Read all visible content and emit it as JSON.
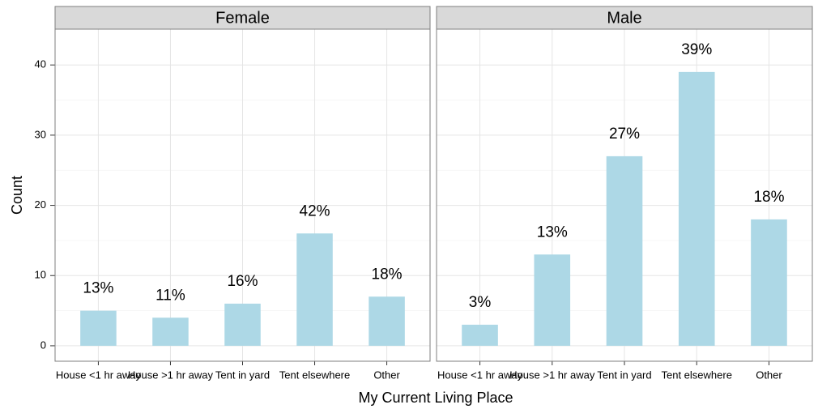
{
  "chart_data": {
    "type": "bar",
    "xlabel": "My Current Living Place",
    "ylabel": "Count",
    "categories": [
      "House <1 hr away",
      "House >1 hr away",
      "Tent in yard",
      "Tent elsewhere",
      "Other"
    ],
    "color": "#add8e6",
    "ylim": [
      -2.2,
      45.1
    ],
    "yticks": [
      0,
      10,
      20,
      30,
      40
    ],
    "grid": true,
    "facets": [
      {
        "title": "Female",
        "values": [
          5,
          4,
          6,
          16,
          7
        ],
        "labels": [
          "13%",
          "11%",
          "16%",
          "42%",
          "18%"
        ]
      },
      {
        "title": "Male",
        "values": [
          3,
          13,
          27,
          39,
          18
        ],
        "labels": [
          "3%",
          "13%",
          "27%",
          "39%",
          "18%"
        ]
      }
    ]
  }
}
